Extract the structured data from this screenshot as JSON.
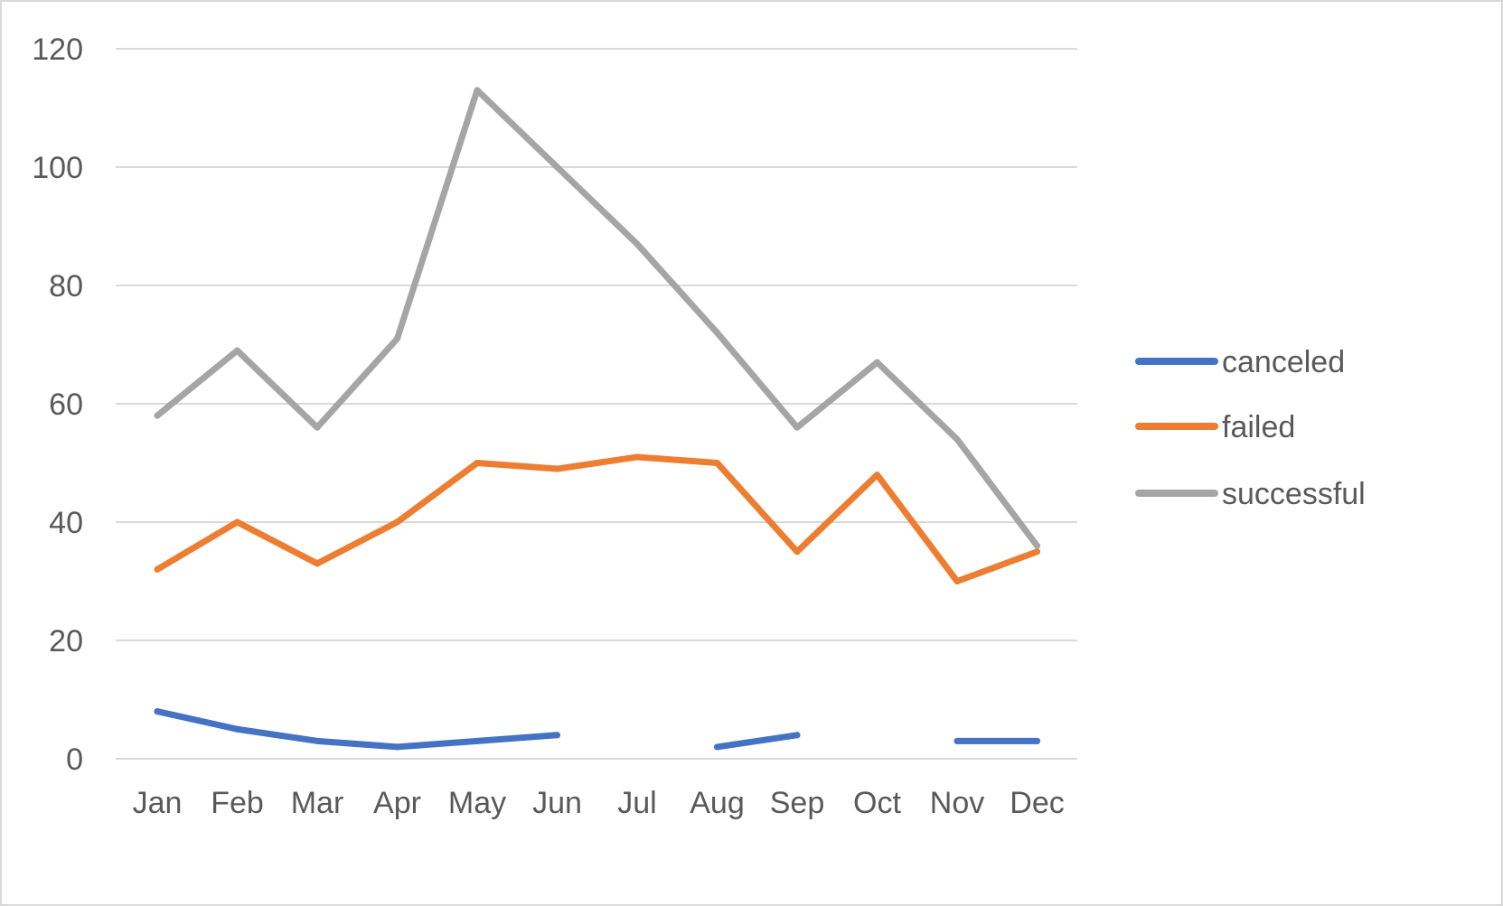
{
  "chart_data": {
    "type": "line",
    "title": "",
    "xlabel": "",
    "ylabel": "",
    "categories": [
      "Jan",
      "Feb",
      "Mar",
      "Apr",
      "May",
      "Jun",
      "Jul",
      "Aug",
      "Sep",
      "Oct",
      "Nov",
      "Dec"
    ],
    "ylim": [
      0,
      120
    ],
    "yticks": [
      "0",
      "20",
      "40",
      "60",
      "80",
      "100",
      "120"
    ],
    "grid": true,
    "legend_position": "right",
    "series": [
      {
        "name": "canceled",
        "color": "#4472C4",
        "values": [
          8,
          5,
          3,
          2,
          3,
          4,
          null,
          2,
          4,
          null,
          3,
          3
        ]
      },
      {
        "name": "failed",
        "color": "#ED7D31",
        "values": [
          32,
          40,
          33,
          40,
          50,
          49,
          51,
          50,
          35,
          48,
          30,
          35
        ]
      },
      {
        "name": "successful",
        "color": "#A5A5A5",
        "values": [
          58,
          69,
          56,
          71,
          113,
          100,
          87,
          72,
          56,
          67,
          54,
          36
        ]
      }
    ]
  }
}
